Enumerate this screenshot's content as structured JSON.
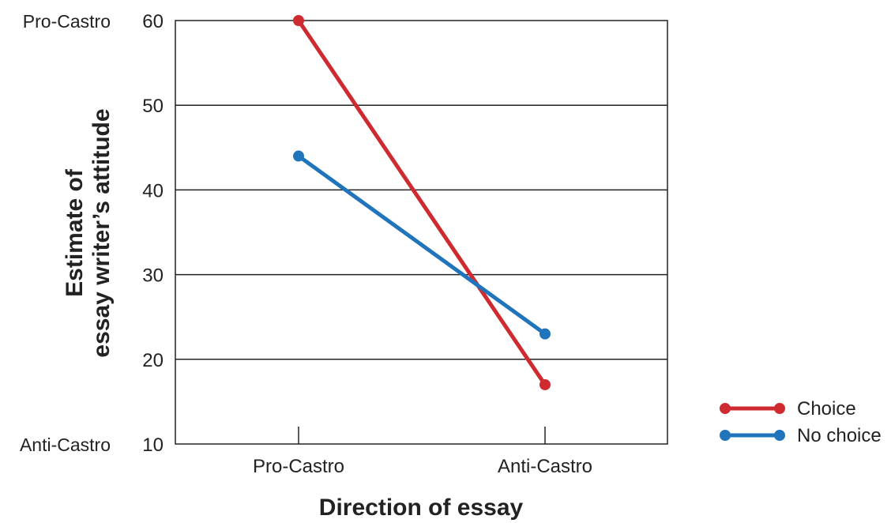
{
  "chart_data": {
    "type": "line",
    "title": "",
    "xlabel": "Direction of essay",
    "ylabel_lines": [
      "Estimate of",
      "essay writer’s attitude"
    ],
    "categories": [
      "Pro-Castro",
      "Anti-Castro"
    ],
    "ylim": [
      10,
      60
    ],
    "yticks": [
      10,
      20,
      30,
      40,
      50,
      60
    ],
    "y_side_labels": {
      "top": "Pro-Castro",
      "bottom": "Anti-Castro"
    },
    "grid": true,
    "legend_position": "bottom-right",
    "series": [
      {
        "name": "Choice",
        "values": [
          60,
          17
        ],
        "color": "#cf2a2f"
      },
      {
        "name": "No choice",
        "values": [
          44,
          23
        ],
        "color": "#1f74bb"
      }
    ]
  }
}
